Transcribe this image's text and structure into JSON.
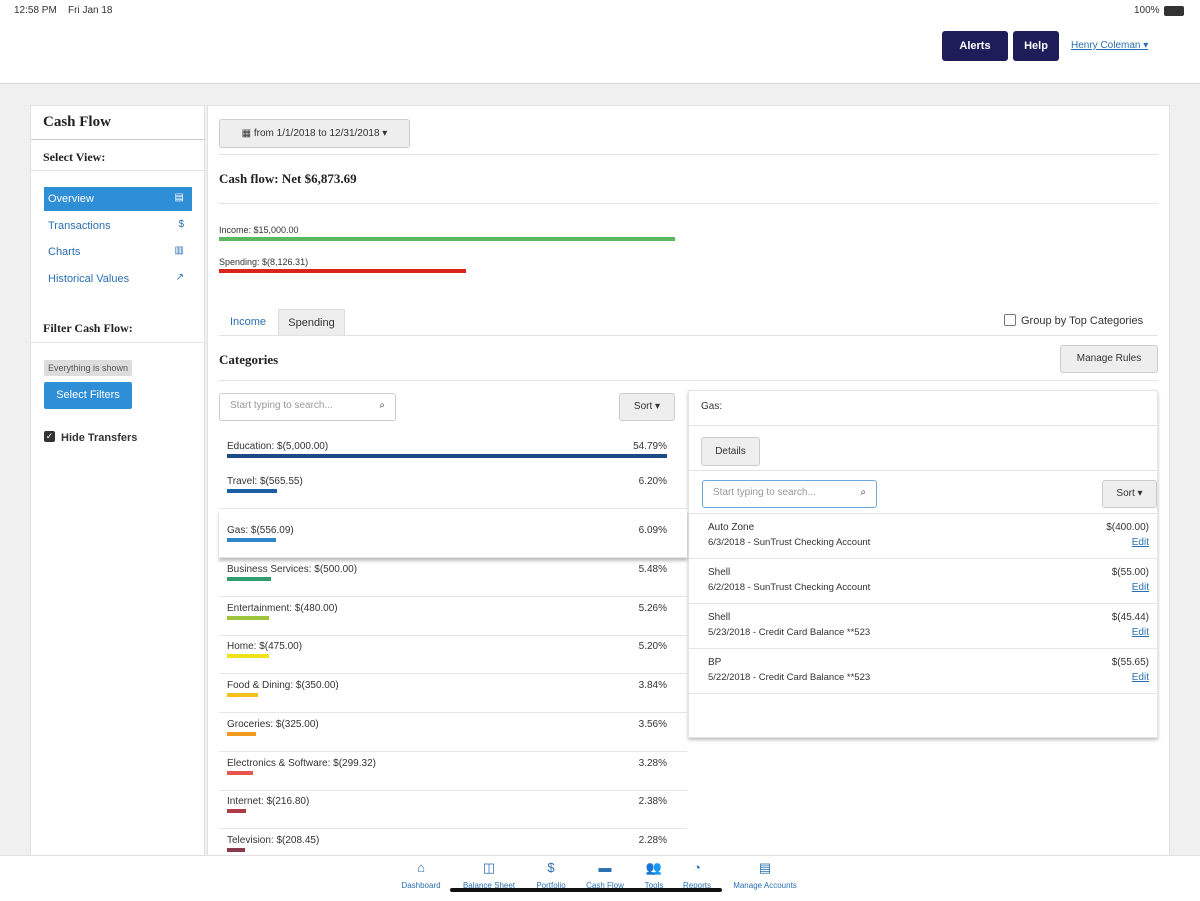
{
  "status_bar": {
    "time": "12:58 PM",
    "date": "Fri Jan 18",
    "battery": "100%"
  },
  "header": {
    "alerts": "Alerts",
    "help": "Help",
    "user": "Henry Coleman"
  },
  "sidebar": {
    "title": "Cash Flow",
    "select_view": "Select View:",
    "views": [
      {
        "label": "Overview",
        "active": true
      },
      {
        "label": "Transactions",
        "active": false
      },
      {
        "label": "Charts",
        "active": false
      },
      {
        "label": "Historical Values",
        "active": false
      }
    ],
    "filter_title": "Filter Cash Flow:",
    "filter_status": "Everything is shown",
    "select_filters": "Select Filters",
    "hide_transfers": "Hide Transfers",
    "hide_transfers_checked": true
  },
  "main": {
    "date_range": "from 1/1/2018 to 12/31/2018",
    "net": "Cash flow: Net $6,873.69",
    "income": "Income: $15,000.00",
    "income_color": "#5cb85c",
    "spending": "Spending: $(8,126.31)",
    "spending_color": "#d9231b",
    "tabs": [
      {
        "label": "Income",
        "active": false
      },
      {
        "label": "Spending",
        "active": true
      }
    ],
    "group_by": "Group by Top Categories",
    "group_by_checked": false,
    "categories_title": "Categories",
    "manage_rules": "Manage Rules",
    "search_placeholder": "Start typing to search...",
    "sort": "Sort",
    "categories": [
      {
        "label": "Education: $(5,000.00)",
        "percent": "54.79%",
        "color": "#1d4b87"
      },
      {
        "label": "Travel: $(565.55)",
        "percent": "6.20%",
        "color": "#1b5ea6"
      },
      {
        "label": "Gas: $(556.09)",
        "percent": "6.09%",
        "color": "#2f86c8"
      },
      {
        "label": "Business Services: $(500.00)",
        "percent": "5.48%",
        "color": "#2e9e72"
      },
      {
        "label": "Entertainment: $(480.00)",
        "percent": "5.26%",
        "color": "#9cc43c"
      },
      {
        "label": "Home: $(475.00)",
        "percent": "5.20%",
        "color": "#ede21c"
      },
      {
        "label": "Food & Dining: $(350.00)",
        "percent": "3.84%",
        "color": "#f4c11a"
      },
      {
        "label": "Groceries: $(325.00)",
        "percent": "3.56%",
        "color": "#f39a1e"
      },
      {
        "label": "Electronics & Software: $(299.32)",
        "percent": "3.28%",
        "color": "#e8544e"
      },
      {
        "label": "Internet: $(216.80)",
        "percent": "2.38%",
        "color": "#b03a48"
      },
      {
        "label": "Television: $(208.45)",
        "percent": "2.28%",
        "color": "#8a3a4a"
      }
    ]
  },
  "detail": {
    "title": "Gas:",
    "details": "Details",
    "search_placeholder": "Start typing to search...",
    "sort": "Sort",
    "transactions": [
      {
        "payee": "Auto Zone",
        "info": "6/3/2018 - SunTrust Checking Account",
        "amount": "$(400.00)",
        "edit": "Edit"
      },
      {
        "payee": "Shell",
        "info": "6/2/2018 - SunTrust Checking Account",
        "amount": "$(55.00)",
        "edit": "Edit"
      },
      {
        "payee": "Shell",
        "info": "5/23/2018 - Credit Card Balance **523",
        "amount": "$(45.44)",
        "edit": "Edit"
      },
      {
        "payee": "BP",
        "info": "5/22/2018 - Credit Card Balance **523",
        "amount": "$(55.65)",
        "edit": "Edit"
      }
    ]
  },
  "bottom_nav": [
    "Dashboard",
    "Balance Sheet",
    "Portfolio",
    "Cash Flow",
    "Tools",
    "Reports",
    "Manage Accounts"
  ]
}
